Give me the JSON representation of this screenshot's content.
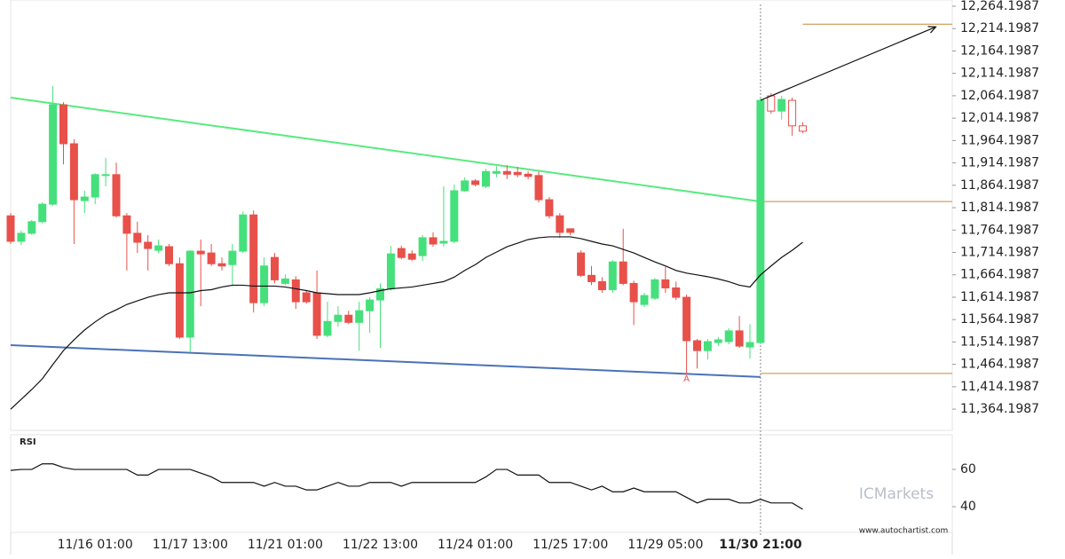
{
  "chart_data": {
    "type": "candlestick",
    "categories": [
      null,
      null,
      null,
      null,
      null,
      null,
      null,
      null,
      "11/16 01:00",
      null,
      null,
      null,
      null,
      null,
      null,
      null,
      null,
      "11/17 13:00",
      null,
      null,
      null,
      null,
      null,
      null,
      null,
      null,
      "11/21 01:00",
      null,
      null,
      null,
      null,
      null,
      null,
      null,
      null,
      "11/22 13:00",
      null,
      null,
      null,
      null,
      null,
      null,
      null,
      null,
      "11/24 01:00",
      null,
      null,
      null,
      null,
      null,
      null,
      null,
      null,
      "11/25 17:00",
      null,
      null,
      null,
      null,
      null,
      null,
      null,
      null,
      "11/29 05:00",
      null,
      null,
      null,
      null,
      null,
      null,
      null,
      null,
      "11/30 21:00",
      null,
      null,
      null,
      null
    ],
    "open": [
      11796,
      11739,
      11757,
      11783,
      11822,
      12044,
      11957,
      11830,
      11838,
      11886,
      11888,
      11796,
      11757,
      11737,
      11719,
      11727,
      11689,
      11525,
      11717,
      11713,
      11689,
      11687,
      11717,
      11798,
      11602,
      11703,
      11645,
      11653,
      11624,
      11624,
      11529,
      11560,
      11574,
      11558,
      11584,
      11608,
      11633,
      11723,
      11711,
      11707,
      11747,
      11735,
      11739,
      11852,
      11874,
      11862,
      11891,
      11895,
      11893,
      11889,
      11886,
      11832,
      11796,
      11767,
      11713,
      11663,
      11649,
      11631,
      11693,
      11645,
      11598,
      11612,
      11653,
      11635,
      11614,
      11517,
      11495,
      11513,
      11515,
      11539,
      11503,
      11513,
      12064,
      12030,
      12054,
      11997
    ],
    "high": [
      11802,
      11763,
      11787,
      11826,
      12086,
      12050,
      11967,
      11852,
      11891,
      11925,
      11915,
      11802,
      11783,
      11753,
      11743,
      11733,
      11703,
      11719,
      11743,
      11733,
      11703,
      11733,
      11806,
      11808,
      11703,
      11713,
      11665,
      11661,
      11629,
      11674,
      11604,
      11594,
      11584,
      11604,
      11614,
      11645,
      11729,
      11729,
      11719,
      11753,
      11759,
      11862,
      11866,
      11882,
      11878,
      11901,
      11907,
      11909,
      11905,
      11895,
      11895,
      11838,
      11802,
      11767,
      11719,
      11684,
      11659,
      11697,
      11767,
      11651,
      11624,
      11657,
      11682,
      11649,
      11620,
      11521,
      11521,
      11525,
      11545,
      11572,
      11554,
      12058,
      12070,
      12064,
      12060,
      12005
    ],
    "low": [
      11733,
      11731,
      11753,
      11779,
      11818,
      11911,
      11733,
      11802,
      11822,
      11862,
      11792,
      11674,
      11713,
      11674,
      11713,
      11684,
      11521,
      11491,
      11594,
      11684,
      11674,
      11641,
      11713,
      11580,
      11594,
      11645,
      11641,
      11588,
      11600,
      11521,
      11525,
      11548,
      11554,
      11495,
      11535,
      11501,
      11629,
      11699,
      11695,
      11695,
      11727,
      11727,
      11735,
      11850,
      11862,
      11858,
      11882,
      11878,
      11882,
      11878,
      11826,
      11790,
      11747,
      11753,
      11659,
      11641,
      11624,
      11624,
      11641,
      11552,
      11592,
      11608,
      11624,
      11608,
      11441,
      11455,
      11475,
      11505,
      11509,
      11501,
      11477,
      11509,
      12024,
      12011,
      11975,
      11981
    ],
    "close": [
      11739,
      11757,
      11783,
      11822,
      12044,
      11957,
      11832,
      11838,
      11888,
      11888,
      11796,
      11757,
      11737,
      11723,
      11729,
      11689,
      11525,
      11717,
      11711,
      11689,
      11684,
      11717,
      11798,
      11602,
      11684,
      11653,
      11655,
      11604,
      11604,
      11529,
      11560,
      11574,
      11558,
      11584,
      11608,
      11633,
      11711,
      11703,
      11699,
      11747,
      11733,
      11739,
      11852,
      11874,
      11866,
      11895,
      11895,
      11889,
      11888,
      11884,
      11832,
      11796,
      11759,
      11759,
      11663,
      11649,
      11631,
      11693,
      11645,
      11604,
      11618,
      11653,
      11635,
      11614,
      11517,
      11495,
      11515,
      11519,
      11539,
      11505,
      11513,
      12054,
      12030,
      12056,
      11997,
      11985
    ],
    "up_color": "#45e07b",
    "down_color": "#e8504a",
    "moving_average": {
      "color": "#111111",
      "values": [
        11364,
        11386,
        11408,
        11432,
        11464,
        11495,
        11519,
        11541,
        11559,
        11575,
        11586,
        11598,
        11606,
        11614,
        11620,
        11624,
        11624,
        11624,
        11629,
        11631,
        11637,
        11641,
        11641,
        11639,
        11639,
        11639,
        11637,
        11633,
        11629,
        11624,
        11622,
        11620,
        11620,
        11620,
        11624,
        11629,
        11633,
        11635,
        11637,
        11641,
        11645,
        11649,
        11659,
        11674,
        11687,
        11703,
        11715,
        11727,
        11735,
        11743,
        11747,
        11749,
        11749,
        11749,
        11745,
        11739,
        11733,
        11729,
        11721,
        11713,
        11703,
        11693,
        11684,
        11674,
        11668,
        11664,
        11660,
        11655,
        11649,
        11641,
        11637,
        11664,
        11684,
        11703,
        11719,
        11737
      ]
    },
    "trend_lines": [
      {
        "x": [
          0,
          71
        ],
        "values": [
          12060,
          11828
        ],
        "color": "#59ea7f"
      },
      {
        "x": [
          0,
          71
        ],
        "values": [
          11507,
          11436
        ],
        "color": "#4a72b8"
      }
    ],
    "arrow": {
      "x": [
        71,
        87.6
      ],
      "values": [
        12054,
        12218
      ],
      "color": "#111111"
    },
    "levels": [
      {
        "value": 12224,
        "x_start": 75,
        "color": "#c8893a"
      },
      {
        "value": 11828,
        "x_start": 71,
        "color": "#c8893a"
      },
      {
        "value": 11444,
        "x_start": 71,
        "color": "#c8893a"
      }
    ],
    "marker": {
      "label": "A",
      "x": 64,
      "value": 11432,
      "color": "#e8504a"
    },
    "vline_x": 71,
    "ylim": [
      11316.8,
      12278.1
    ],
    "yticks": [
      {
        "value": 12264.1987,
        "label": "12,264.1987"
      },
      {
        "value": 12214.1987,
        "label": "12,214.1987"
      },
      {
        "value": 12164.1987,
        "label": "12,164.1987"
      },
      {
        "value": 12114.1987,
        "label": "12,114.1987"
      },
      {
        "value": 12064.1987,
        "label": "12,064.1987"
      },
      {
        "value": 12014.1987,
        "label": "12,014.1987"
      },
      {
        "value": 11964.1987,
        "label": "11,964.1987"
      },
      {
        "value": 11914.1987,
        "label": "11,914.1987"
      },
      {
        "value": 11864.1987,
        "label": "11,864.1987"
      },
      {
        "value": 11814.1987,
        "label": "11,814.1987"
      },
      {
        "value": 11764.1987,
        "label": "11,764.1987"
      },
      {
        "value": 11714.1987,
        "label": "11,714.1987"
      },
      {
        "value": 11664.1987,
        "label": "11,664.1987"
      },
      {
        "value": 11614.1987,
        "label": "11,614.1987"
      },
      {
        "value": 11564.1987,
        "label": "11,564.1987"
      },
      {
        "value": 11514.1987,
        "label": "11,514.1987"
      },
      {
        "value": 11464.1987,
        "label": "11,464.1987"
      },
      {
        "value": 11414.1987,
        "label": "11,414.1987"
      },
      {
        "value": 11364.1987,
        "label": "11,364.1987"
      }
    ],
    "rsi": {
      "title": "RSI",
      "color": "#111111",
      "ylim": [
        26.2,
        78.6
      ],
      "yticks": [
        60,
        40
      ],
      "values": [
        59.5,
        60,
        60,
        63,
        63,
        61,
        60,
        60,
        60,
        60,
        60,
        60,
        57,
        57,
        60,
        60,
        60,
        60,
        58,
        56,
        53,
        53,
        53,
        53,
        51,
        53,
        51,
        51,
        49,
        49,
        51,
        53,
        51,
        51,
        53,
        53,
        53,
        51,
        53,
        53,
        53,
        53,
        53,
        53,
        53,
        56,
        60,
        60,
        57,
        57,
        57,
        53,
        53,
        53,
        51,
        49,
        51,
        48,
        48,
        50,
        48,
        48,
        48,
        48,
        45,
        42,
        44,
        44,
        44,
        42,
        42,
        44,
        42,
        42,
        42,
        38.6
      ]
    },
    "watermark": "ICMarkets",
    "source": "www.autochartist.com"
  }
}
